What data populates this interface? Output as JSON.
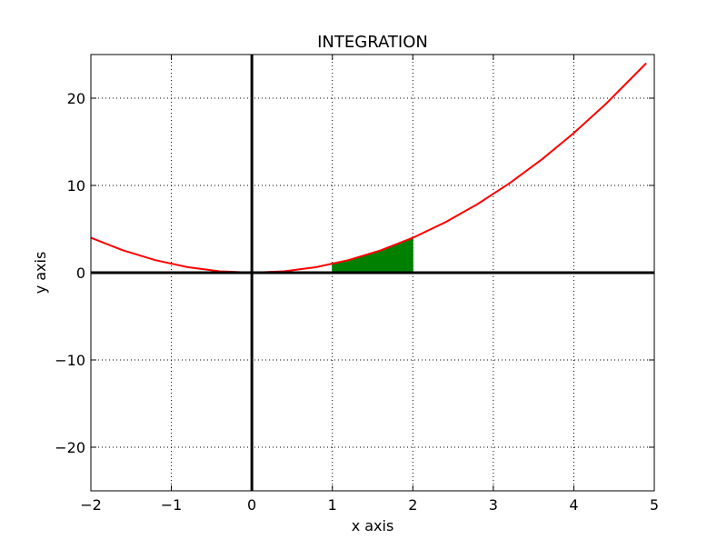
{
  "chart_data": {
    "type": "line",
    "title": "INTEGRATION",
    "xlabel": "x axis",
    "ylabel": "y axis",
    "xlim": [
      -2,
      5
    ],
    "ylim": [
      -25,
      25
    ],
    "grid": true,
    "x_ticks": [
      -2,
      -1,
      0,
      1,
      2,
      3,
      4,
      5
    ],
    "x_tick_labels": [
      "−2",
      "−1",
      "0",
      "1",
      "2",
      "3",
      "4",
      "5"
    ],
    "y_ticks": [
      -20,
      -10,
      0,
      10,
      20
    ],
    "y_tick_labels": [
      "−20",
      "−10",
      "0",
      "10",
      "20"
    ],
    "series": [
      {
        "color": "#ff0000",
        "x": [
          -2.0,
          -1.6,
          -1.2,
          -0.8,
          -0.4,
          0.0,
          0.4,
          0.8,
          1.2,
          1.6,
          2.0,
          2.4,
          2.8,
          3.2,
          3.6,
          4.0,
          4.4,
          4.9
        ],
        "y": [
          4.0,
          2.56,
          1.44,
          0.64,
          0.16,
          0.0,
          0.16,
          0.64,
          1.44,
          2.56,
          4.0,
          5.76,
          7.84,
          10.24,
          12.96,
          16.0,
          19.36,
          24.01
        ]
      }
    ],
    "filled_region": {
      "color": "#008000",
      "x": [
        1.0,
        1.2,
        1.4,
        1.6,
        1.8,
        2.0
      ],
      "y": [
        1.0,
        1.44,
        1.96,
        2.56,
        3.24,
        4.0
      ],
      "baseline": 0
    },
    "reference_lines": {
      "color": "#000000",
      "x_zero": 0,
      "y_zero": 0
    }
  }
}
